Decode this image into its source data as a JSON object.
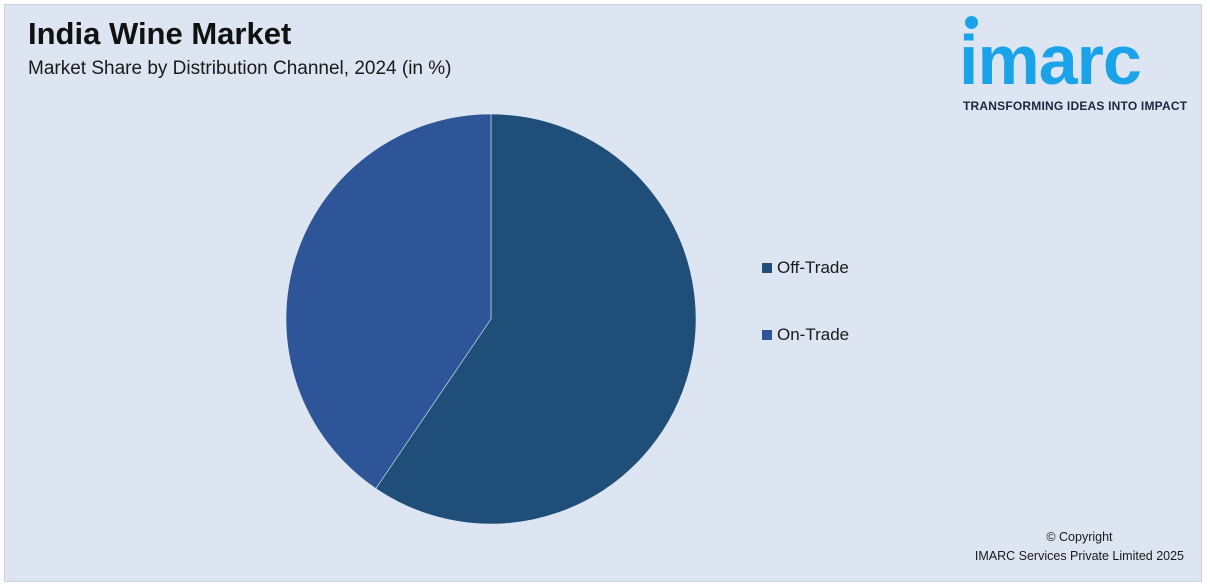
{
  "header": {
    "title": "India Wine Market",
    "subtitle": "Market Share by Distribution Channel, 2024 (in %)"
  },
  "logo": {
    "wordmark": "imarc",
    "tagline": "TRANSFORMING IDEAS INTO IMPACT",
    "color": "#1aa3e8"
  },
  "chart_data": {
    "type": "pie",
    "title": "India Wine Market",
    "subtitle": "Market Share by Distribution Channel, 2024 (in %)",
    "categories": [
      "Off-Trade",
      "On-Trade"
    ],
    "values": [
      59.5,
      40.5
    ],
    "colors": [
      "#1f4e79",
      "#2e5597"
    ],
    "legend_position": "right",
    "start_angle_deg": 0,
    "direction": "clockwise"
  },
  "footer": {
    "copyright_line1": "© Copyright",
    "copyright_line2": "IMARC Services Private Limited 2025"
  }
}
